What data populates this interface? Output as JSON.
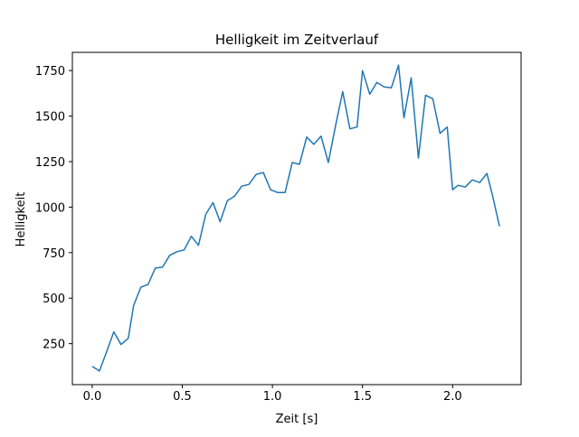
{
  "chart_data": {
    "type": "line",
    "title": "Helligkeit im Zeitverlauf",
    "xlabel": "Zeit [s]",
    "ylabel": "Helligkeit",
    "xlim": [
      -0.11,
      2.38
    ],
    "ylim": [
      25,
      1850
    ],
    "xticks": [
      0.0,
      0.5,
      1.0,
      1.5,
      2.0
    ],
    "xtick_labels": [
      "0.0",
      "0.5",
      "1.0",
      "1.5",
      "2.0"
    ],
    "yticks": [
      250,
      500,
      750,
      1000,
      1250,
      1500,
      1750
    ],
    "ytick_labels": [
      "250",
      "500",
      "750",
      "1000",
      "1250",
      "1500",
      "1750"
    ],
    "grid": false,
    "line_color": "#1f77b4",
    "series": [
      {
        "x": [
          0.0,
          0.04,
          0.08,
          0.12,
          0.16,
          0.2,
          0.23,
          0.27,
          0.31,
          0.35,
          0.39,
          0.43,
          0.47,
          0.51,
          0.55,
          0.59,
          0.63,
          0.67,
          0.71,
          0.75,
          0.79,
          0.83,
          0.87,
          0.91,
          0.95,
          0.99,
          1.03,
          1.07,
          1.11,
          1.15,
          1.19,
          1.23,
          1.27,
          1.31,
          1.35,
          1.39,
          1.43,
          1.47,
          1.5,
          1.54,
          1.58,
          1.62,
          1.66,
          1.7,
          1.73,
          1.77,
          1.81,
          1.85,
          1.89,
          1.93,
          1.97,
          2.0,
          2.03,
          2.07,
          2.11,
          2.15,
          2.19,
          2.22,
          2.26
        ],
        "y": [
          125,
          100,
          205,
          315,
          245,
          280,
          460,
          560,
          575,
          665,
          670,
          735,
          755,
          765,
          840,
          790,
          960,
          1025,
          920,
          1035,
          1060,
          1115,
          1125,
          1180,
          1190,
          1095,
          1080,
          1080,
          1245,
          1235,
          1385,
          1345,
          1390,
          1245,
          1445,
          1635,
          1430,
          1440,
          1750,
          1620,
          1685,
          1660,
          1655,
          1780,
          1490,
          1710,
          1270,
          1615,
          1595,
          1405,
          1440,
          1095,
          1120,
          1110,
          1150,
          1135,
          1185,
          1070,
          895
        ]
      }
    ]
  }
}
